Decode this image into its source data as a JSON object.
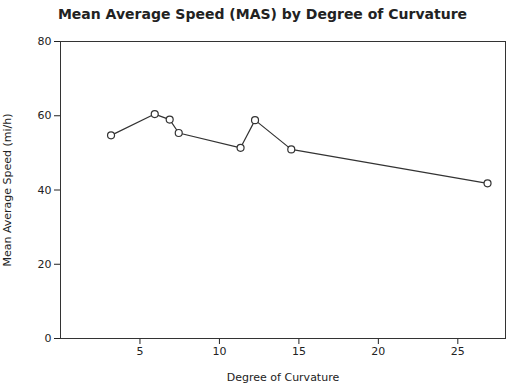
{
  "chart_data": {
    "type": "line",
    "title": "Mean Average Speed (MAS) by Degree of Curvature",
    "xlabel": "Degree of Curvature",
    "ylabel": "Mean Average Speed (mi/h)",
    "x": [
      3.18,
      5.93,
      6.87,
      7.44,
      11.33,
      12.24,
      14.52,
      26.87
    ],
    "values": [
      54.72,
      60.45,
      58.96,
      55.35,
      51.36,
      58.82,
      50.94,
      41.79
    ],
    "xlim": [
      0,
      28
    ],
    "ylim": [
      0,
      80
    ],
    "xticks": [
      5,
      10,
      15,
      20,
      25
    ],
    "yticks": [
      0,
      20,
      40,
      60,
      80
    ],
    "color": "#333333",
    "marker": "circle",
    "grid": false
  }
}
